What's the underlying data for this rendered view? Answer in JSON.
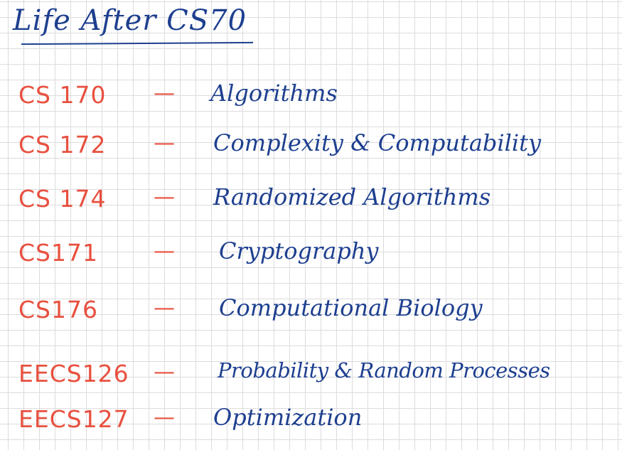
{
  "title": "Life After CS70",
  "courses": [
    {
      "code": "CS 170",
      "dash": "—",
      "name": "Algorithms"
    },
    {
      "code": "CS 172",
      "dash": "—",
      "name": "Complexity & Computability"
    },
    {
      "code": "CS 174",
      "dash": "—",
      "name": "Randomized Algorithms"
    },
    {
      "code": "CS171",
      "dash": "—",
      "name": "Cryptography"
    },
    {
      "code": "CS176",
      "dash": "—",
      "name": "Computational Biology"
    },
    {
      "code": "EECS126",
      "dash": "—",
      "name": "Probability & Random Processes"
    },
    {
      "code": "EECS127",
      "dash": "—",
      "name": "Optimization"
    }
  ],
  "colors": {
    "title_ink": "#1d3f8f",
    "code_ink": "#e8503f",
    "grid_line": "#dcdcdc",
    "paper": "#ffffff"
  }
}
